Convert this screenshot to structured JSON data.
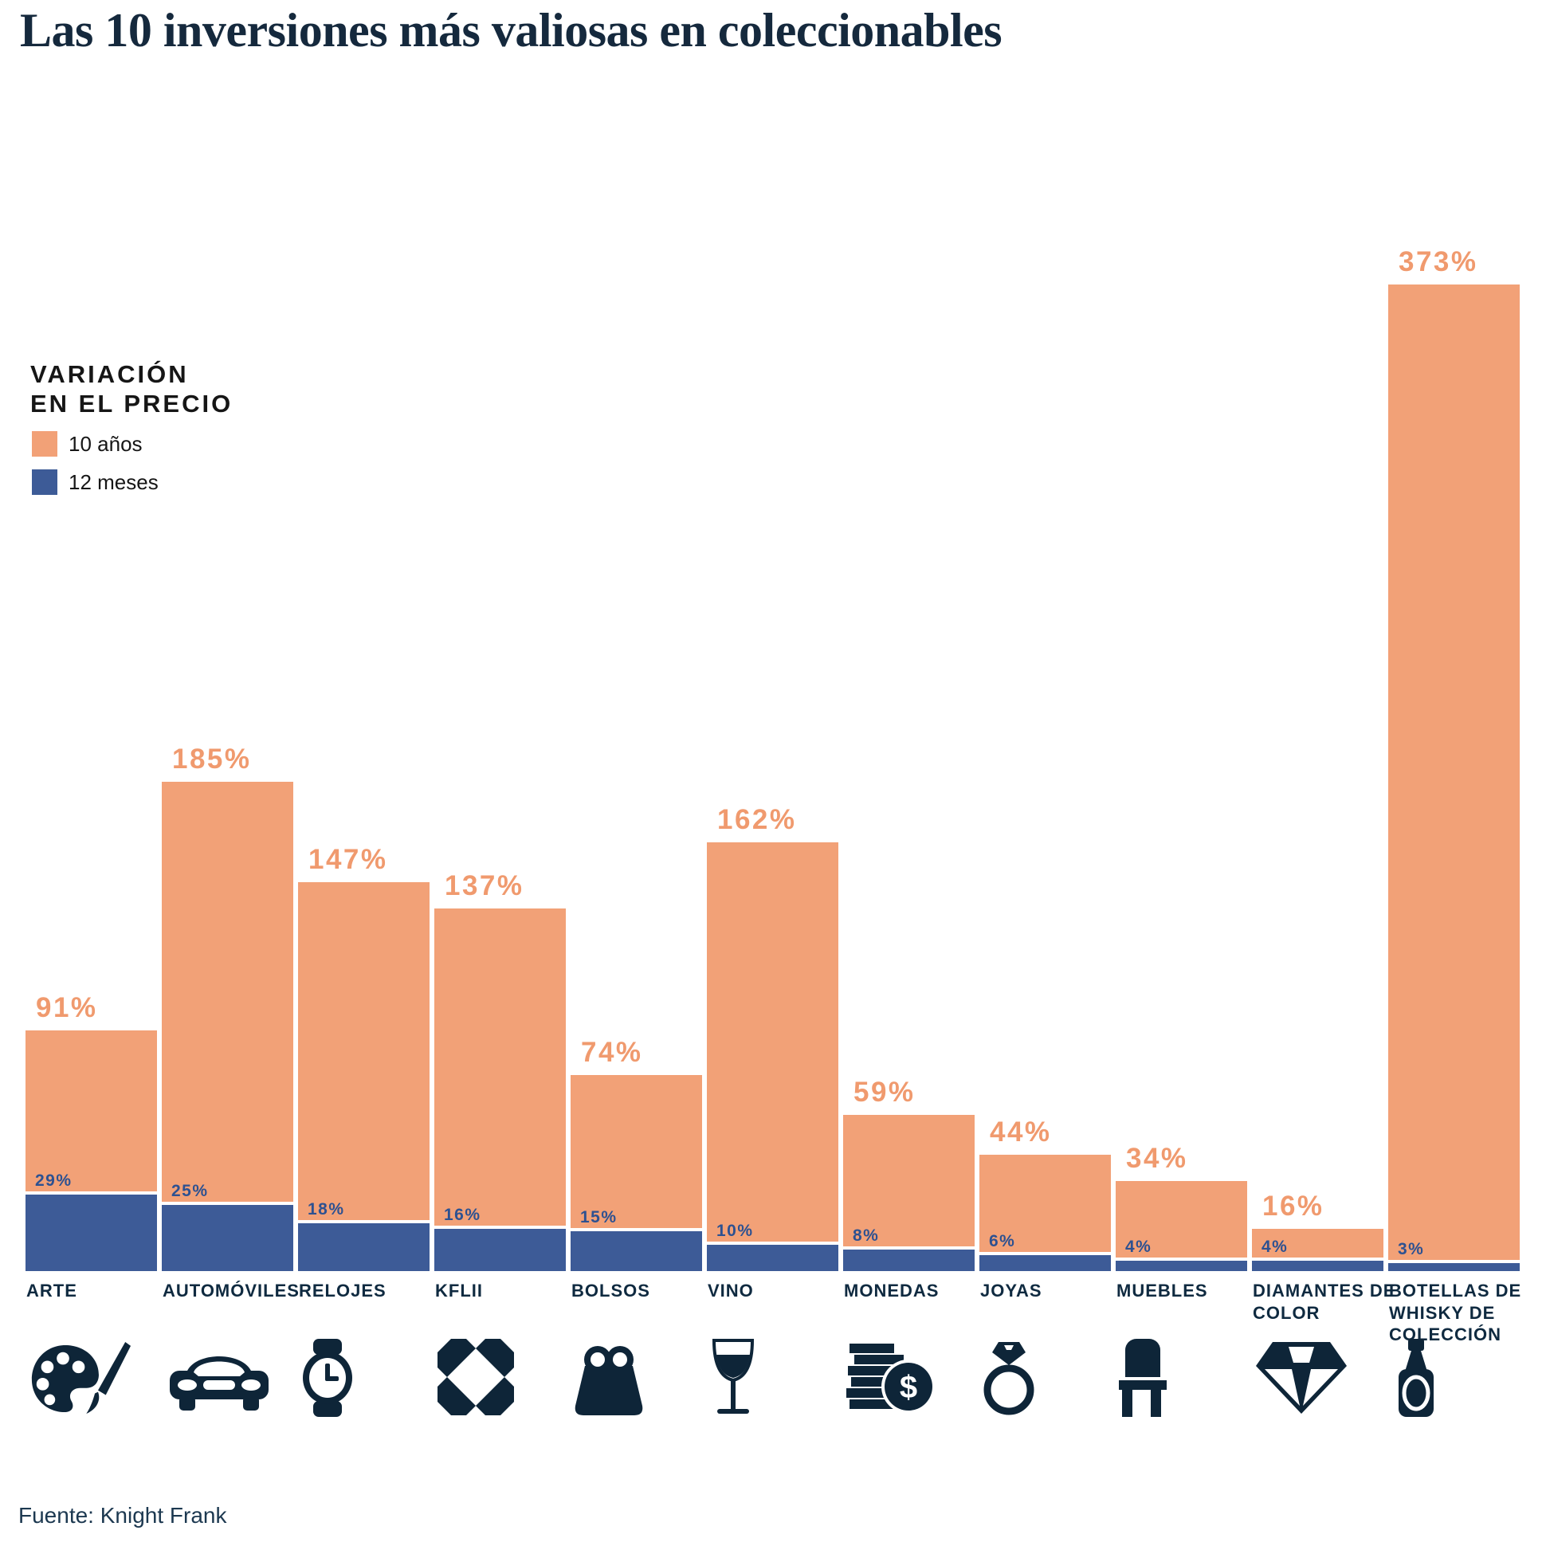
{
  "title": "Las 10 inversiones más valiosas en coleccionables",
  "legend": {
    "title": "VARIACIÓN\nEN EL PRECIO",
    "items": [
      {
        "label": "10 años",
        "color": "#F2A177"
      },
      {
        "label": "12 meses",
        "color": "#3D5B97"
      }
    ]
  },
  "source": "Fuente: Knight Frank",
  "chart_data": {
    "type": "bar",
    "title": "Las 10 inversiones más valiosas en coleccionables",
    "value_suffix": "%",
    "ylim": [
      0,
      373
    ],
    "grid": false,
    "legend_position": "upper-left",
    "categories": [
      "ARTE",
      "AUTOMÓVILES",
      "RELOJES",
      "KFLII",
      "BOLSOS",
      "VINO",
      "MONEDAS",
      "JOYAS",
      "MUEBLES",
      "DIAMANTES DE\nCOLOR",
      "BOTELLAS DE\nWHISKY DE\nCOLECCIÓN"
    ],
    "icons": [
      "palette",
      "car",
      "watch",
      "kflii-logo",
      "handbag",
      "wine-glass",
      "coins-dollar",
      "ring",
      "chair",
      "diamond",
      "whisky-bottle"
    ],
    "series": [
      {
        "name": "10 años",
        "color": "#F2A177",
        "label_color": "#F09A6E",
        "values": [
          91,
          185,
          147,
          137,
          74,
          162,
          59,
          44,
          34,
          16,
          373
        ]
      },
      {
        "name": "12 meses",
        "color": "#3D5B97",
        "label_color": "#2D5191",
        "values": [
          29,
          25,
          18,
          16,
          15,
          10,
          8,
          6,
          4,
          4,
          3
        ]
      }
    ]
  }
}
